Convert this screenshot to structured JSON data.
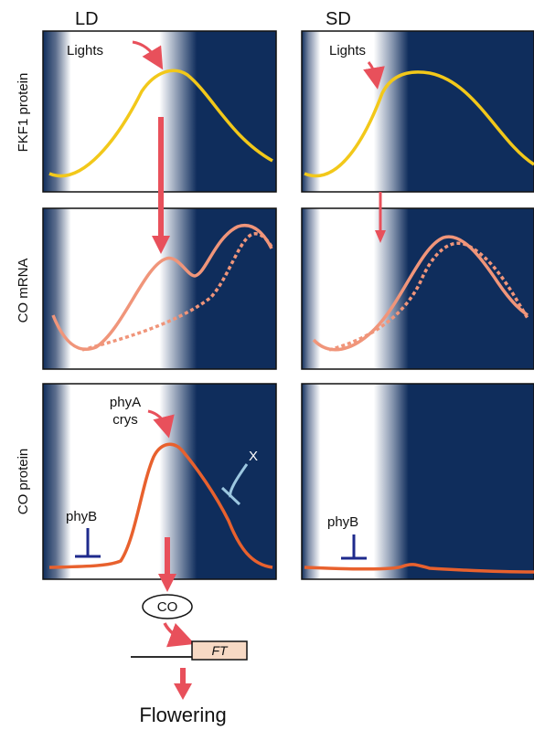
{
  "columns": {
    "ld": "LD",
    "sd": "SD"
  },
  "row_labels": {
    "fkf1": "FKF1 protein",
    "co_mrna": "CO mRNA",
    "co_protein": "CO protein"
  },
  "annotations": {
    "lights_ld": "Lights",
    "lights_sd": "Lights",
    "phya_line1": "phyA",
    "phya_line2": "crys",
    "x_factor": "X",
    "phyb_ld": "phyB",
    "phyb_sd": "phyB",
    "co_oval": "CO",
    "ft_box": "FT",
    "flowering": "Flowering"
  },
  "colors": {
    "night": "#0f2d5c",
    "day": "#ffffff",
    "fkf1_curve": "#f2c81a",
    "co_mrna_curve": "#f0957a",
    "co_protein_curve": "#e8612e",
    "arrow": "#e8505b",
    "phy_inhibit": "#1e2a8c",
    "x_inhibit": "#9cc7e0",
    "ft_fill": "#f7d9c4"
  }
}
